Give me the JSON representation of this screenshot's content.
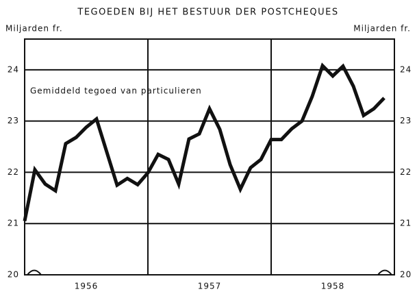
{
  "chart_data": {
    "type": "line",
    "title": "TEGOEDEN BIJ HET BESTUUR DER POSTCHEQUES",
    "y_label": "Miljarden fr.",
    "y2_label": "Miljarden fr.",
    "annotation": "Gemiddeld tegoed van particulieren",
    "x": [
      1956,
      1956.083,
      1956.167,
      1956.25,
      1956.333,
      1956.417,
      1956.5,
      1956.583,
      1956.667,
      1956.75,
      1956.833,
      1956.917,
      1957,
      1957.083,
      1957.167,
      1957.25,
      1957.333,
      1957.417,
      1957.5,
      1957.583,
      1957.667,
      1957.75,
      1957.833,
      1957.917,
      1958,
      1958.083,
      1958.167,
      1958.25,
      1958.333,
      1958.417,
      1958.5,
      1958.583,
      1958.667,
      1958.75,
      1958.833,
      1958.917
    ],
    "series": [
      {
        "name": "Gemiddeld tegoed van particulieren",
        "color": "#111111",
        "values": [
          21.05,
          22.05,
          21.77,
          21.64,
          22.56,
          22.68,
          22.88,
          23.04,
          22.39,
          21.75,
          21.88,
          21.76,
          21.99,
          22.35,
          22.25,
          21.77,
          22.65,
          22.75,
          23.24,
          22.84,
          22.15,
          21.67,
          22.09,
          22.25,
          22.64,
          22.64,
          22.85,
          23.0,
          23.48,
          24.08,
          23.88,
          24.07,
          23.68,
          23.11,
          23.24,
          23.45
        ]
      }
    ],
    "xlim": [
      1956,
      1959
    ],
    "xticks": [
      {
        "value": 1956.5,
        "label": "1956"
      },
      {
        "value": 1957.5,
        "label": "1957"
      },
      {
        "value": 1958.5,
        "label": "1958"
      }
    ],
    "xgrid": [
      1957,
      1958
    ],
    "ylim": [
      20,
      24.6
    ],
    "yticks": [
      20,
      21,
      22,
      23,
      24
    ],
    "grid": true,
    "right_ticks": true
  }
}
